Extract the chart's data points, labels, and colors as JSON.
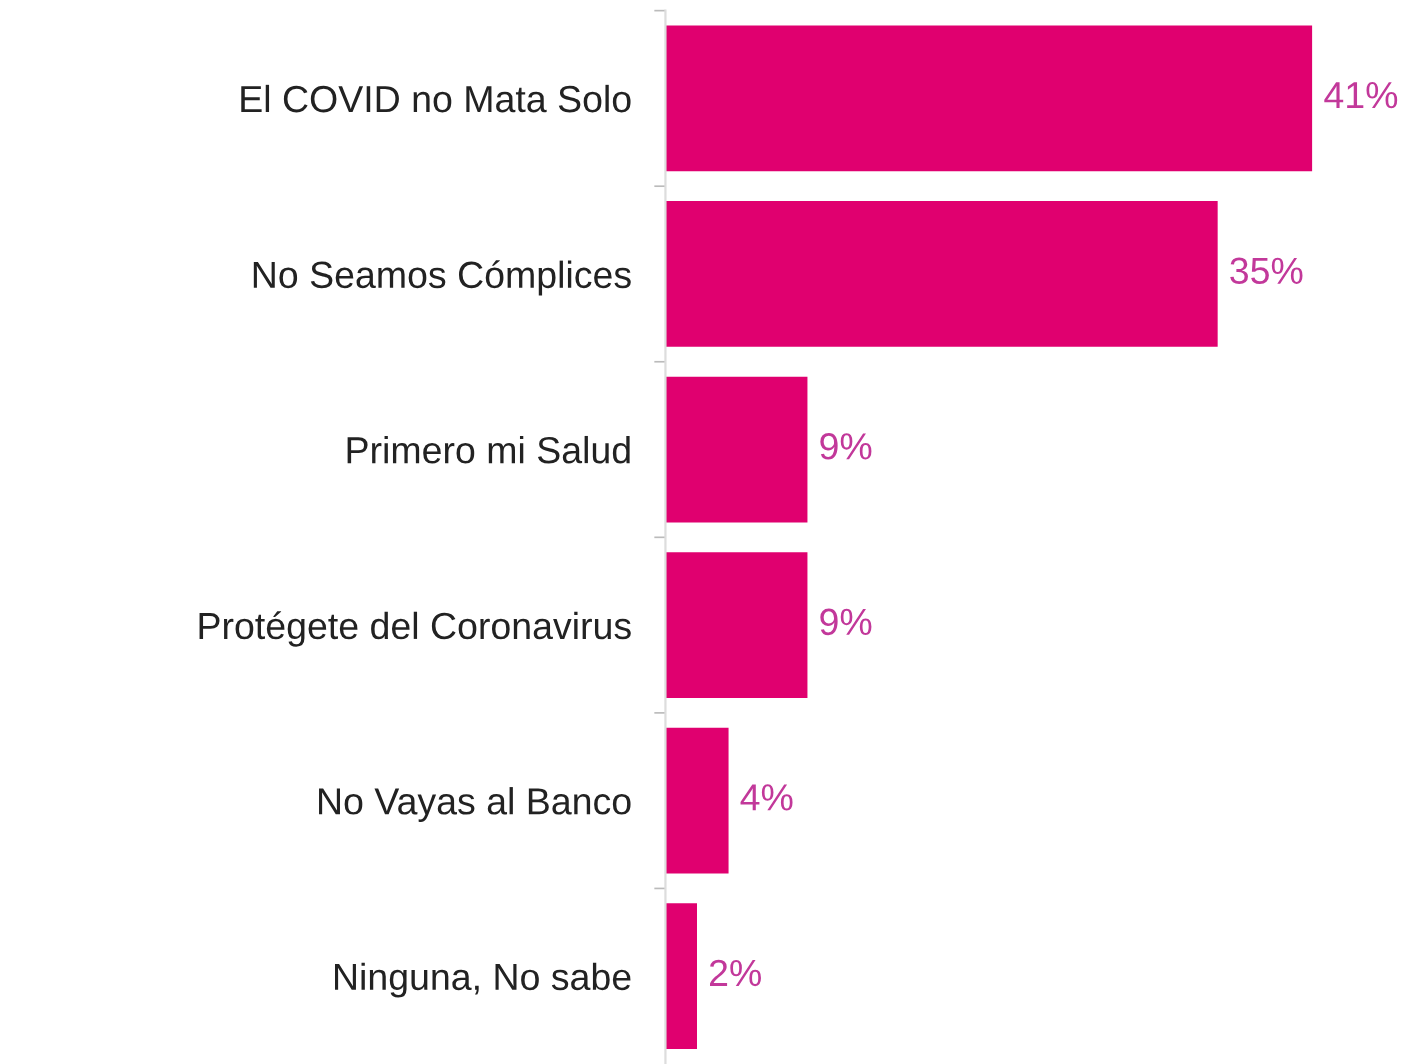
{
  "chart_data": {
    "type": "bar",
    "orientation": "horizontal",
    "categories": [
      "El COVID no Mata Solo",
      "No Seamos Cómplices",
      "Primero mi Salud",
      "Protégete del Coronavirus",
      "No Vayas al Banco",
      "Ninguna, No sabe"
    ],
    "values": [
      41,
      35,
      9,
      9,
      4,
      2
    ],
    "value_labels": [
      "41%",
      "35%",
      "9%",
      "9%",
      "4%",
      "2%"
    ],
    "color": "#e0006f",
    "tick_labels": "y",
    "grid": false,
    "legend": false
  }
}
